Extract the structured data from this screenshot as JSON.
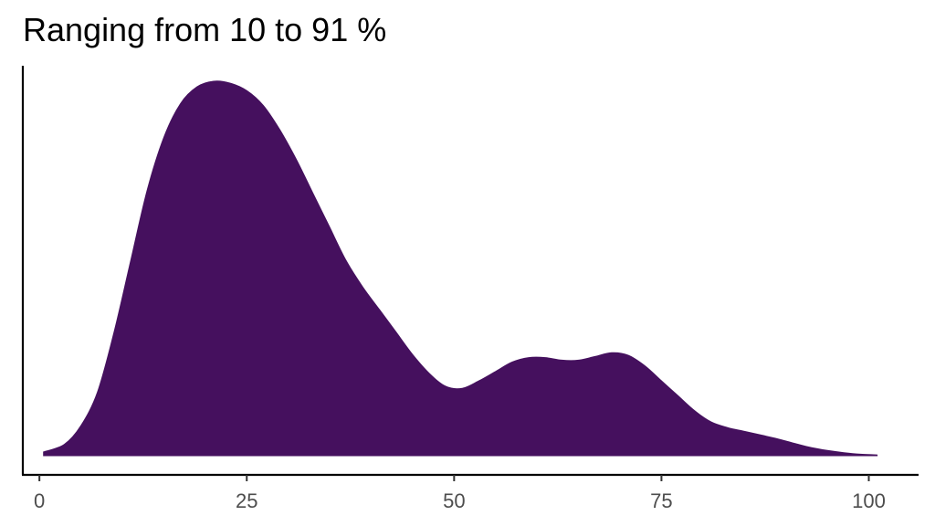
{
  "chart_data": {
    "type": "area",
    "title": "Ranging from 10 to 91 %",
    "xlabel": "",
    "ylabel": "",
    "xlim": [
      -2,
      106
    ],
    "ylim": [
      0,
      1.05
    ],
    "xticks": [
      0,
      25,
      50,
      75,
      100
    ],
    "xtick_labels": [
      "0",
      "25",
      "50",
      "75",
      "100"
    ],
    "grid": false,
    "legend": "none",
    "fill_color": "#45105E",
    "axis_color": "#000000",
    "tick_label_color": "#4d4d4d",
    "series": [
      {
        "x": [
          0.5,
          3,
          5,
          7,
          9,
          11,
          13,
          15,
          17,
          19,
          21,
          23,
          25,
          27,
          29,
          31,
          33,
          35,
          37,
          39,
          41,
          43,
          45,
          47,
          49,
          51,
          53,
          55,
          57,
          59,
          61,
          63,
          65,
          67,
          69,
          71,
          73,
          75,
          77,
          79,
          81,
          83,
          85,
          87,
          89,
          91,
          93,
          95,
          97,
          99,
          101
        ],
        "y": [
          0.01,
          0.03,
          0.08,
          0.17,
          0.33,
          0.52,
          0.71,
          0.85,
          0.94,
          0.985,
          1.0,
          0.995,
          0.975,
          0.935,
          0.87,
          0.79,
          0.7,
          0.61,
          0.52,
          0.45,
          0.39,
          0.33,
          0.27,
          0.22,
          0.185,
          0.18,
          0.2,
          0.225,
          0.25,
          0.262,
          0.262,
          0.255,
          0.255,
          0.265,
          0.275,
          0.268,
          0.24,
          0.2,
          0.16,
          0.12,
          0.09,
          0.075,
          0.065,
          0.055,
          0.045,
          0.033,
          0.022,
          0.014,
          0.008,
          0.004,
          0.002
        ]
      }
    ]
  }
}
